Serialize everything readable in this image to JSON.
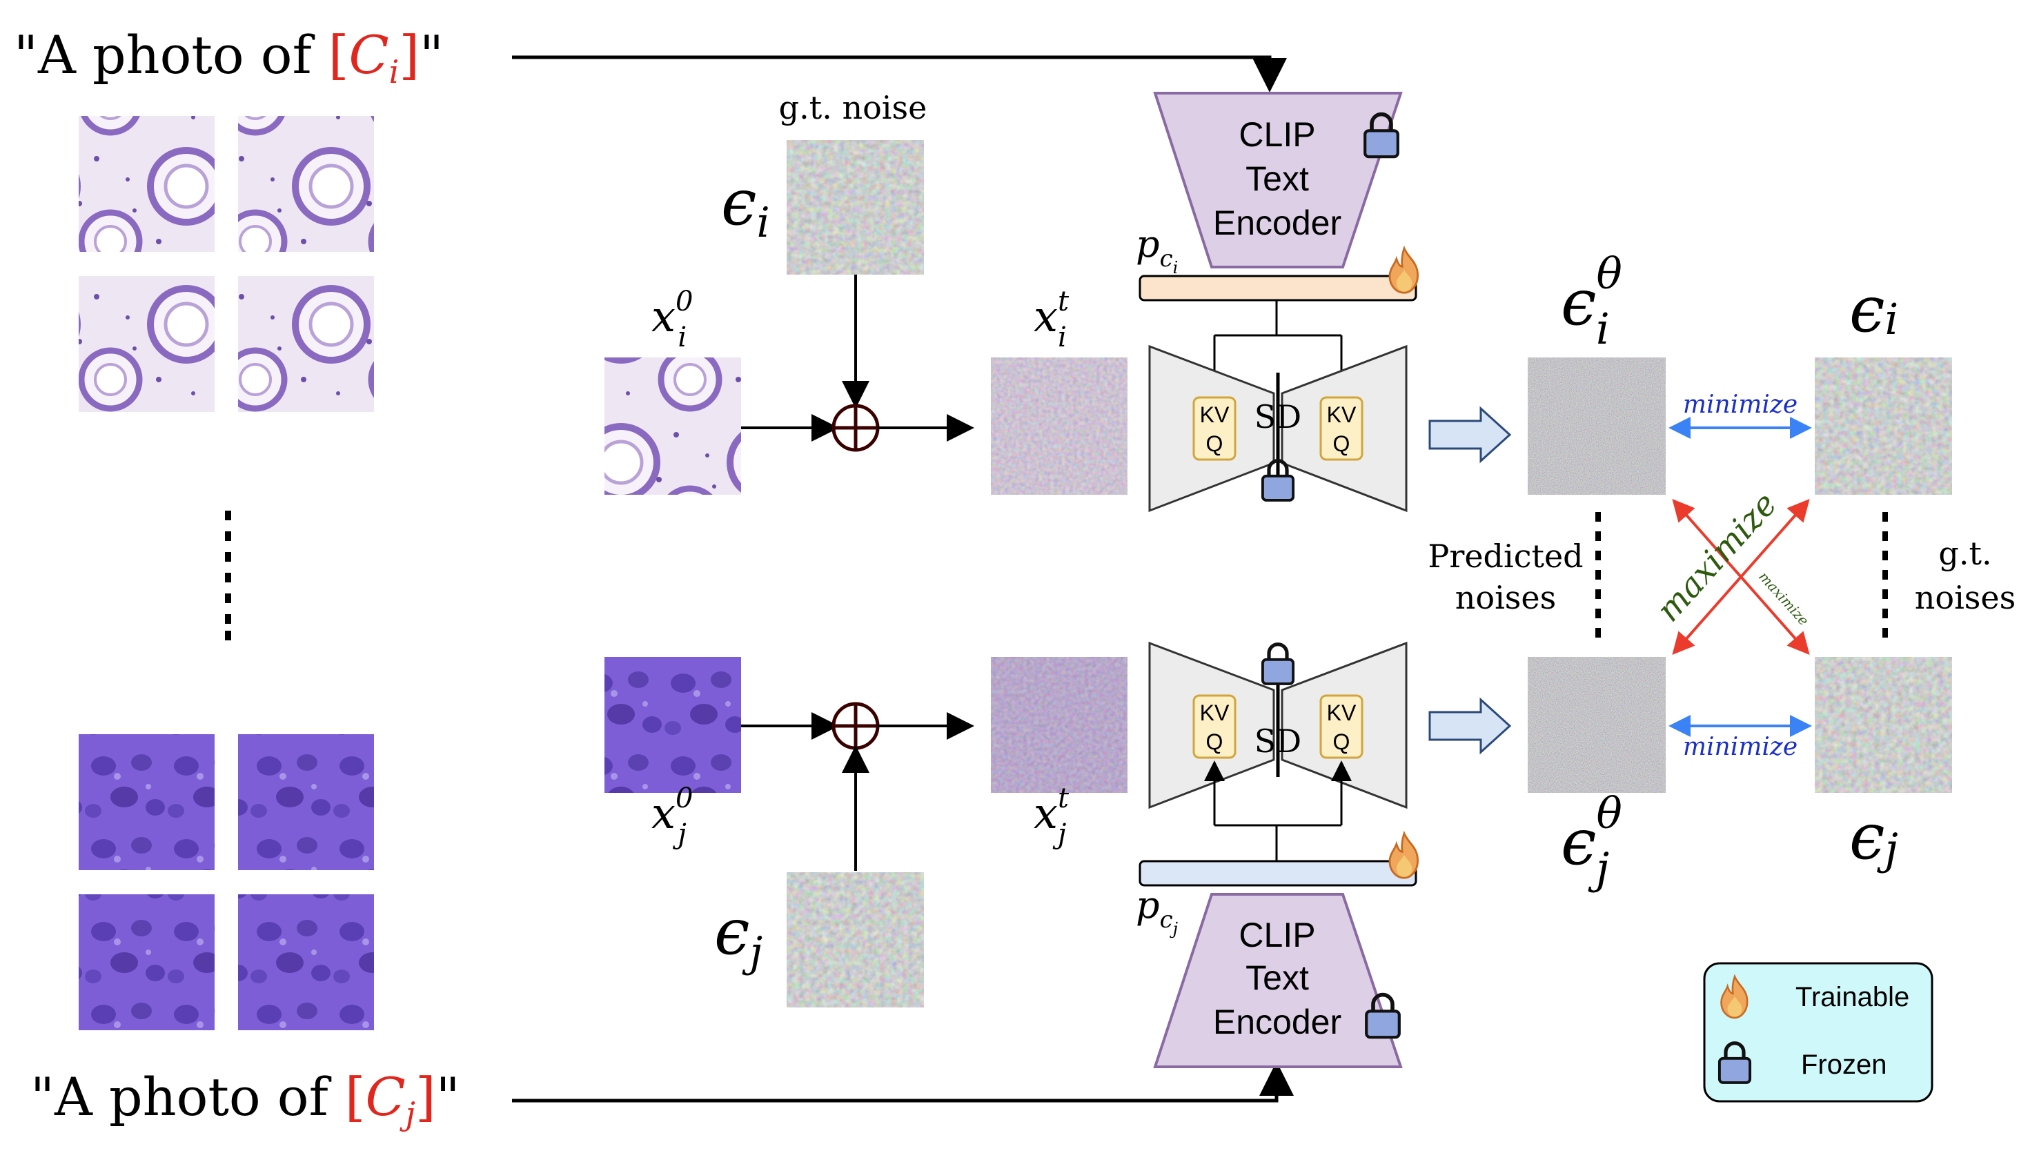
{
  "prompts": {
    "top": {
      "prefix": "\"A photo of ",
      "class_open": "[",
      "class_letter": "C",
      "class_sub": "i",
      "class_close": "]",
      "suffix": "\""
    },
    "bottom": {
      "prefix": "\"A photo of ",
      "class_open": "[",
      "class_letter": "C",
      "class_sub": "j",
      "class_close": "]",
      "suffix": "\""
    }
  },
  "labels": {
    "gt_noise": "g.t. noise",
    "predicted_line1": "Predicted",
    "predicted_line2": "noises",
    "gt_line1": "g.t.",
    "gt_line2": "noises",
    "sd": "SD",
    "kv": "KV",
    "q": "Q",
    "minimize": "minimize",
    "maximize": "maximize"
  },
  "math": {
    "epsilon": "ϵ",
    "x": "x",
    "p": "p",
    "c": "c",
    "theta": "θ",
    "sub_i": "i",
    "sub_j": "j",
    "sup_0": "0",
    "sup_t": "t"
  },
  "clip": {
    "line1": "CLIP",
    "line2": "Text",
    "line3": "Encoder"
  },
  "legend": {
    "trainable": "Trainable",
    "frozen": "Frozen"
  },
  "colors": {
    "class_red": "#e0261d",
    "clip_fill": "#ddd0e6",
    "clip_stroke": "#8a6aa3",
    "prompt_bar_i": "#fbe3cc",
    "prompt_bar_j": "#dbe6f7",
    "unet_fill": "#ececec",
    "kv_fill": "#fdf0c6",
    "kv_stroke": "#d2a53c",
    "minimize_arrow": "#3b82f6",
    "minimize_text": "#1a2fc9",
    "maximize_arrow": "#ea3b2c",
    "maximize_text": "#2e5a10",
    "legend_fill": "#cff8fa",
    "block_arrow": "#d7e4f6"
  },
  "icons": [
    "fire-icon",
    "lock-icon",
    "plus-circle-icon"
  ]
}
